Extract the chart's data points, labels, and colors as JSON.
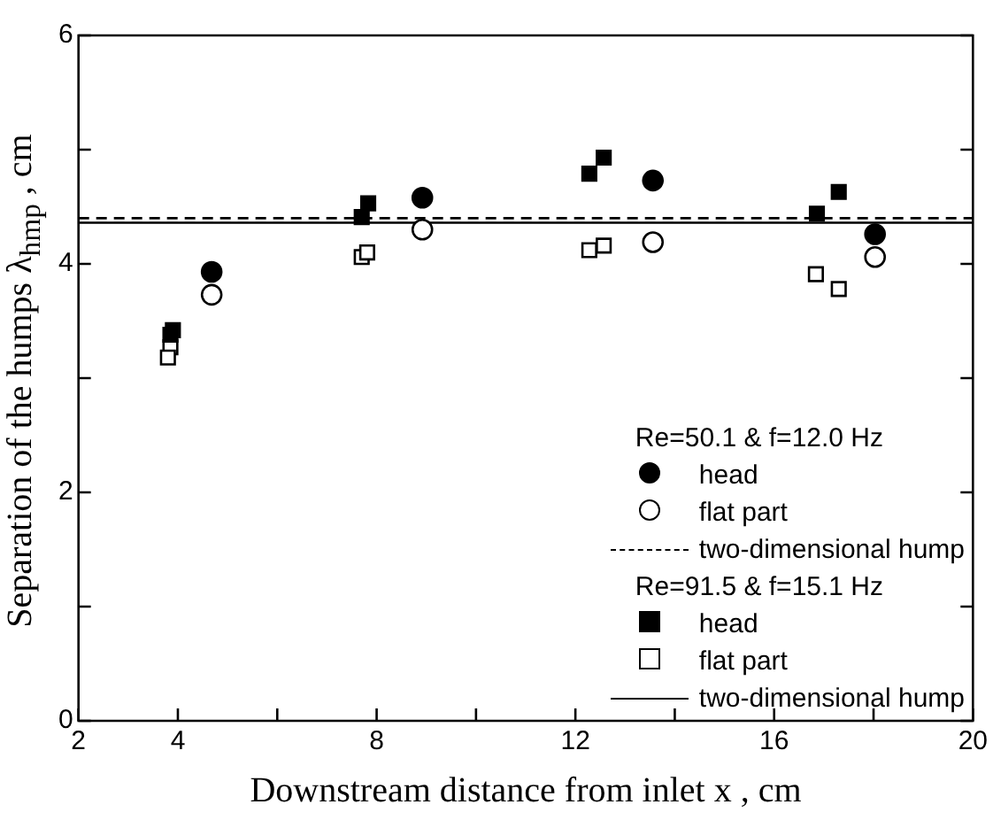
{
  "chart_data": {
    "type": "scatter",
    "xlabel": "Downstream distance from inlet x , cm",
    "ylabel": "Separation of the humps λ$_{hmp}$ , cm",
    "xlim": [
      2,
      20
    ],
    "xticks": [
      2,
      4,
      {
        "value": 6,
        "label": null
      },
      8,
      {
        "value": 10,
        "label": null
      },
      12,
      {
        "value": 14,
        "label": null
      },
      16,
      {
        "value": 18,
        "label": null
      },
      20
    ],
    "ylim": [
      0,
      6
    ],
    "yticks": [
      0,
      {
        "value": 1,
        "label": null
      },
      2,
      {
        "value": 3,
        "label": null
      },
      4,
      {
        "value": 5,
        "label": null
      },
      6
    ],
    "grid": false,
    "legend": "bottom right",
    "annotations": [
      "Re=50.1 & f=12.0 Hz",
      "Re=91.5 & f=15.1 Hz"
    ],
    "series": [
      {
        "name": "head",
        "marker": "circle",
        "color": "#000000",
        "x": [
          4.68,
          8.92,
          13.56,
          18.03
        ],
        "values": [
          3.93,
          4.58,
          4.73,
          4.26
        ]
      },
      {
        "name": "flat part",
        "marker": "circle",
        "color": "#ffffff",
        "x": [
          4.68,
          8.92,
          13.56,
          18.03
        ],
        "values": [
          3.73,
          4.3,
          4.19,
          4.06
        ]
      },
      {
        "name": "two-dimensional hump",
        "type": "line",
        "line_style": "dashed",
        "marker": "none",
        "color": "#000000",
        "x": [
          2,
          20
        ],
        "values": [
          4.4,
          4.4
        ]
      },
      {
        "name": "head",
        "marker": "square",
        "color": "#000000",
        "x": [
          3.85,
          3.9,
          7.7,
          7.83,
          12.28,
          12.57,
          16.86,
          17.3
        ],
        "values": [
          3.38,
          3.42,
          4.41,
          4.53,
          4.79,
          4.93,
          4.44,
          4.63
        ]
      },
      {
        "name": "flat part",
        "marker": "square",
        "color": "#ffffff",
        "x": [
          3.85,
          3.8,
          7.7,
          7.81,
          12.28,
          12.57,
          16.84,
          17.3
        ],
        "values": [
          3.27,
          3.18,
          4.06,
          4.1,
          4.12,
          4.16,
          3.91,
          3.78
        ]
      },
      {
        "name": "two-dimensional hump",
        "type": "line",
        "line_style": "solid",
        "marker": "none",
        "color": "#000000",
        "x": [
          2,
          20
        ],
        "values": [
          4.36,
          4.36
        ]
      }
    ]
  }
}
